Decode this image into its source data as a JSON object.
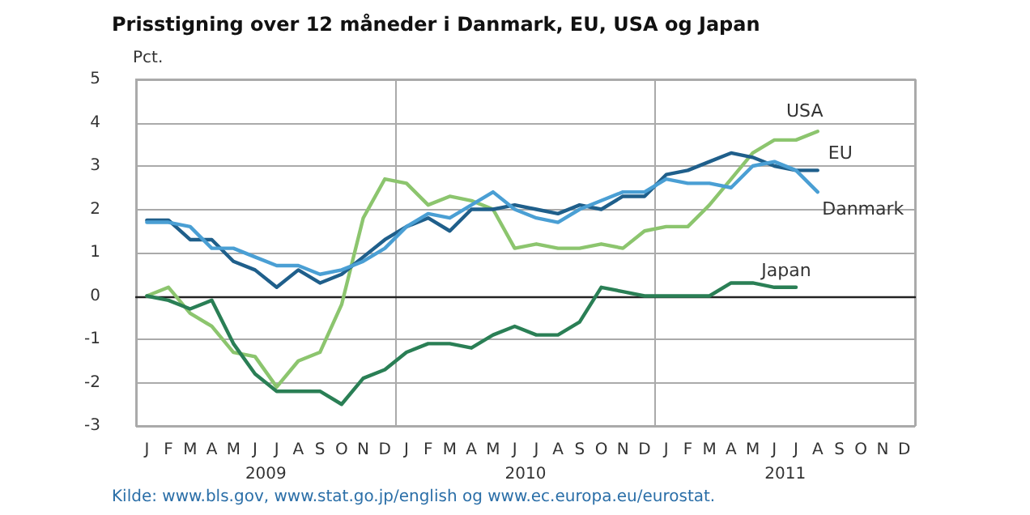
{
  "chart_data": {
    "type": "line",
    "title": "Prisstigning over 12 måneder i Danmark, EU, USA og Japan",
    "ylabel": "Pct.",
    "categories": [
      "J",
      "F",
      "M",
      "A",
      "M",
      "J",
      "J",
      "A",
      "S",
      "O",
      "N",
      "D",
      "J",
      "F",
      "M",
      "A",
      "M",
      "J",
      "J",
      "A",
      "S",
      "O",
      "N",
      "D",
      "J",
      "F",
      "M",
      "A",
      "M",
      "J",
      "J",
      "A",
      "S",
      "O",
      "N",
      "D"
    ],
    "series": [
      {
        "name": "USA",
        "color": "#8cc56e",
        "values": [
          0.0,
          0.2,
          -0.4,
          -0.7,
          -1.3,
          -1.4,
          -2.1,
          -1.5,
          -1.3,
          -0.2,
          1.8,
          2.7,
          2.6,
          2.1,
          2.3,
          2.2,
          2.0,
          1.1,
          1.2,
          1.1,
          1.1,
          1.2,
          1.1,
          1.5,
          1.6,
          1.6,
          2.1,
          2.7,
          3.3,
          3.6,
          3.6,
          3.8,
          null,
          null,
          null,
          null
        ]
      },
      {
        "name": "EU",
        "color": "#1f5f8b",
        "values": [
          1.75,
          1.75,
          1.3,
          1.3,
          0.8,
          0.6,
          0.2,
          0.6,
          0.3,
          0.5,
          0.9,
          1.3,
          1.6,
          1.8,
          1.5,
          2.0,
          2.0,
          2.1,
          2.0,
          1.9,
          2.1,
          2.0,
          2.3,
          2.3,
          2.8,
          2.9,
          3.1,
          3.3,
          3.2,
          3.0,
          2.9,
          2.9,
          null,
          null,
          null,
          null
        ]
      },
      {
        "name": "Danmark",
        "color": "#4a9fd4",
        "values": [
          1.7,
          1.7,
          1.6,
          1.1,
          1.1,
          0.9,
          0.7,
          0.7,
          0.5,
          0.6,
          0.8,
          1.1,
          1.6,
          1.9,
          1.8,
          2.1,
          2.4,
          2.0,
          1.8,
          1.7,
          2.0,
          2.2,
          2.4,
          2.4,
          2.7,
          2.6,
          2.6,
          2.5,
          3.0,
          3.1,
          2.9,
          2.4,
          null,
          null,
          null,
          null
        ]
      },
      {
        "name": "Japan",
        "color": "#2a7f55",
        "values": [
          0.0,
          -0.1,
          -0.3,
          -0.1,
          -1.1,
          -1.8,
          -2.2,
          -2.2,
          -2.2,
          -2.5,
          -1.9,
          -1.7,
          -1.3,
          -1.1,
          -1.1,
          -1.2,
          -0.9,
          -0.7,
          -0.9,
          -0.9,
          -0.6,
          0.2,
          0.1,
          0.0,
          0.0,
          0.0,
          0.0,
          0.3,
          0.3,
          0.2,
          0.2,
          null,
          null,
          null,
          null,
          null
        ]
      }
    ],
    "ylim": [
      -3,
      5
    ],
    "yticks": [
      -3,
      -2,
      -1,
      0,
      1,
      2,
      3,
      4,
      5
    ],
    "grid": true,
    "legend": false,
    "marker": "none",
    "line_style": "solid",
    "annotations": [
      "2009",
      "2010",
      "2011",
      "Kilde: www.bls.gov, www.stat.go.jp/english og www.ec.europa.eu/eurostat."
    ]
  }
}
